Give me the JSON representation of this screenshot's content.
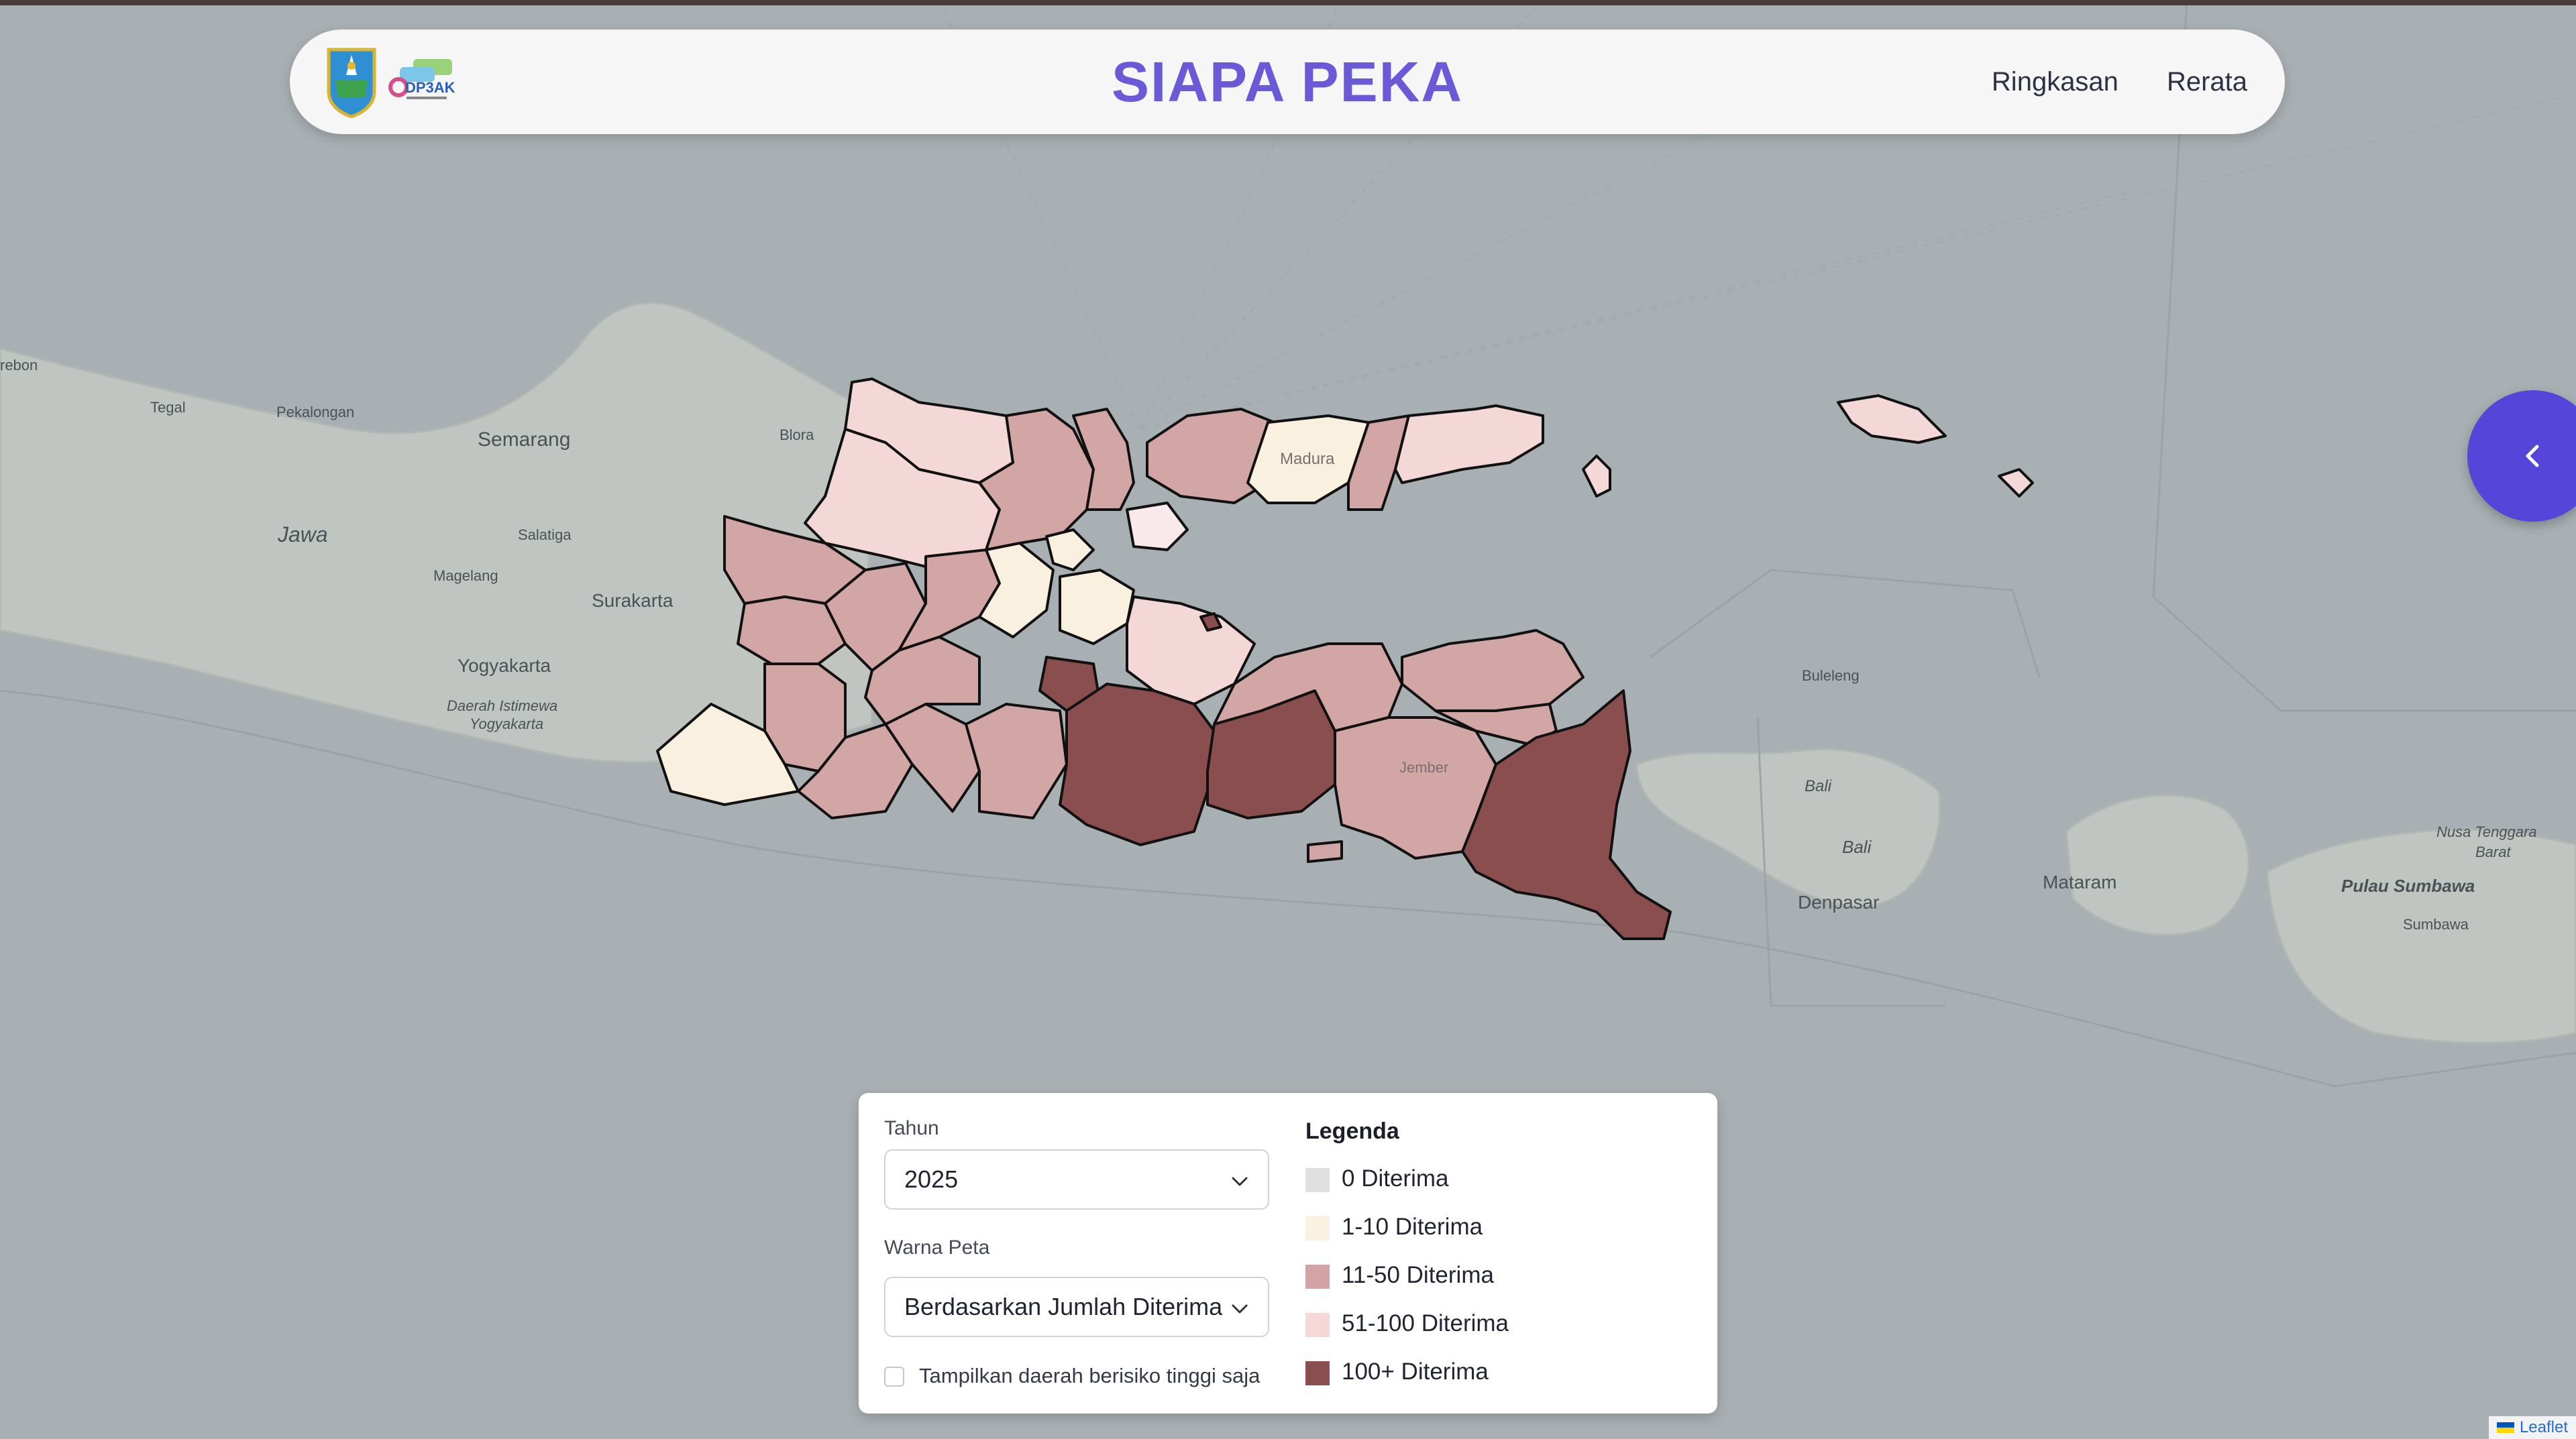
{
  "header": {
    "title": "SIAPA PEKA",
    "nav": [
      {
        "label": "Ringkasan"
      },
      {
        "label": "Rerata"
      }
    ],
    "logos": [
      "jatim-emblem",
      "dp3ak-logo"
    ]
  },
  "map": {
    "place_labels": [
      {
        "text": "rebon"
      },
      {
        "text": "Tegal"
      },
      {
        "text": "Pekalongan"
      },
      {
        "text": "Semarang"
      },
      {
        "text": "Blora"
      },
      {
        "text": "Jawa"
      },
      {
        "text": "Salatiga"
      },
      {
        "text": "Magelang"
      },
      {
        "text": "Surakarta"
      },
      {
        "text": "Yogyakarta"
      },
      {
        "text": "Daerah Istimewa"
      },
      {
        "text": "Yogyakarta"
      },
      {
        "text": "Madura"
      },
      {
        "text": "Buleleng"
      },
      {
        "text": "Bali"
      },
      {
        "text": "Bali"
      },
      {
        "text": "Denpasar"
      },
      {
        "text": "Mataram"
      },
      {
        "text": "Pulau Sumbawa"
      },
      {
        "text": "Sumbawa"
      },
      {
        "text": "Nusa Tenggara"
      },
      {
        "text": "Barat"
      },
      {
        "text": "Jember"
      }
    ]
  },
  "controls": {
    "year_label": "Tahun",
    "year_value": "2025",
    "color_label": "Warna Peta",
    "color_value": "Berdasarkan Jumlah Diterima",
    "high_risk_label": "Tampilkan daerah berisiko tinggi saja",
    "high_risk_checked": false
  },
  "legend": {
    "title": "Legenda",
    "items": [
      {
        "label": "0 Diterima",
        "color": "#e0e0e0"
      },
      {
        "label": "1-10 Diterima",
        "color": "#fbf1e0"
      },
      {
        "label": "11-50 Diterima",
        "color": "#d4a4a4"
      },
      {
        "label": "51-100 Diterima",
        "color": "#f6d8d8"
      },
      {
        "label": "100+ Diterima",
        "color": "#8b4e4e"
      }
    ]
  },
  "attribution": {
    "label": "Leaflet"
  },
  "colors": {
    "accent": "#5546d9",
    "title": "#6a5ad8",
    "sea": "#a9b0b3",
    "land": "#c2c6c3"
  }
}
